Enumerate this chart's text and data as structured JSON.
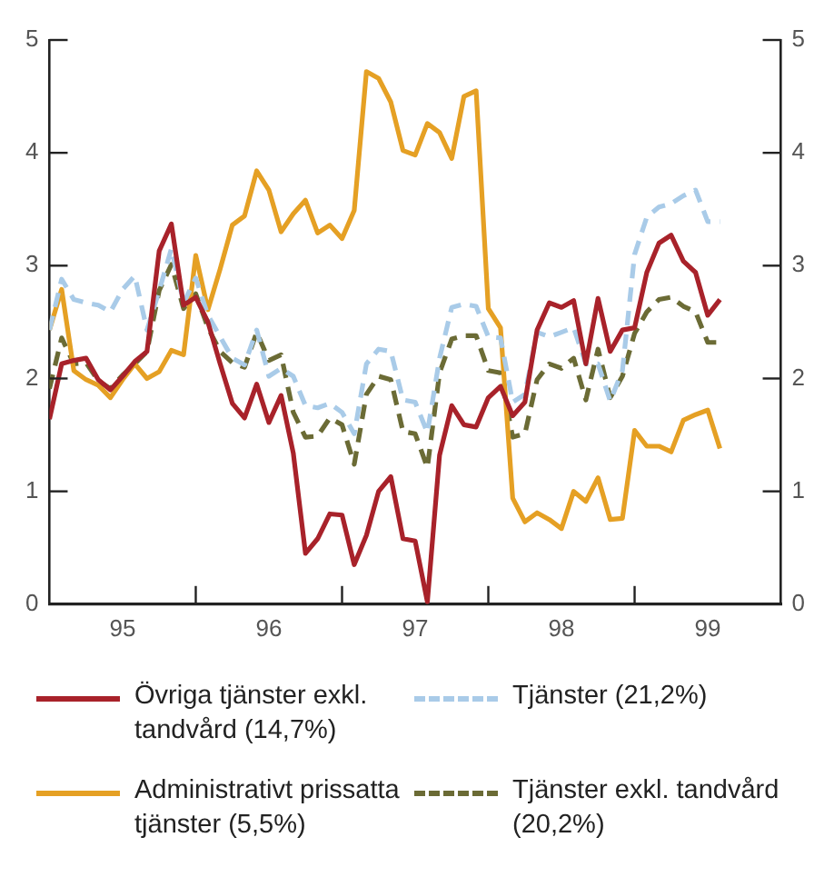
{
  "chart_data": {
    "type": "line",
    "x": [
      "1995-01",
      "1995-02",
      "1995-03",
      "1995-04",
      "1995-05",
      "1995-06",
      "1995-07",
      "1995-08",
      "1995-09",
      "1995-10",
      "1995-11",
      "1995-12",
      "1996-01",
      "1996-02",
      "1996-03",
      "1996-04",
      "1996-05",
      "1996-06",
      "1996-07",
      "1996-08",
      "1996-09",
      "1996-10",
      "1996-11",
      "1996-12",
      "1997-01",
      "1997-02",
      "1997-03",
      "1997-04",
      "1997-05",
      "1997-06",
      "1997-07",
      "1997-08",
      "1997-09",
      "1997-10",
      "1997-11",
      "1997-12",
      "1998-01",
      "1998-02",
      "1998-03",
      "1998-04",
      "1998-05",
      "1998-06",
      "1998-07",
      "1998-08",
      "1998-09",
      "1998-10",
      "1998-11",
      "1998-12",
      "1999-01",
      "1999-02",
      "1999-03",
      "1999-04",
      "1999-05",
      "1999-06",
      "1999-07",
      "1999-08"
    ],
    "series": [
      {
        "name": "Övriga tjänster exkl. tandvård (14,7%)",
        "color": "#a8222a",
        "line_style": "solid",
        "values": [
          1.64,
          2.13,
          2.16,
          2.18,
          1.99,
          1.9,
          2.02,
          2.15,
          2.24,
          3.13,
          3.37,
          2.65,
          2.72,
          2.5,
          2.13,
          1.78,
          1.65,
          1.95,
          1.61,
          1.85,
          1.34,
          0.45,
          0.58,
          0.8,
          0.79,
          0.35,
          0.61,
          1.0,
          1.13,
          0.58,
          0.56,
          0.02,
          1.32,
          1.76,
          1.59,
          1.57,
          1.83,
          1.93,
          1.67,
          1.79,
          2.43,
          2.67,
          2.63,
          2.69,
          2.13,
          2.71,
          2.24,
          2.43,
          2.45,
          2.94,
          3.2,
          3.27,
          3.04,
          2.94,
          2.56,
          2.7
        ]
      },
      {
        "name": "Tjänster (21,2%)",
        "color": "#a9cbe8",
        "line_style": "dashed",
        "values": [
          2.43,
          2.88,
          2.7,
          2.67,
          2.65,
          2.59,
          2.79,
          2.91,
          2.43,
          2.78,
          3.15,
          2.67,
          2.89,
          2.56,
          2.37,
          2.18,
          2.12,
          2.43,
          2.02,
          2.09,
          2.02,
          1.76,
          1.74,
          1.78,
          1.7,
          1.51,
          2.13,
          2.26,
          2.24,
          1.81,
          1.79,
          1.52,
          2.18,
          2.63,
          2.66,
          2.64,
          2.37,
          2.36,
          1.79,
          1.86,
          2.41,
          2.37,
          2.41,
          2.45,
          2.13,
          2.13,
          1.8,
          2.07,
          3.1,
          3.43,
          3.52,
          3.55,
          3.62,
          3.67,
          3.39,
          3.39
        ]
      },
      {
        "name": "Administrativt prissatta tjänster (5,5%)",
        "color": "#e5a024",
        "line_style": "solid",
        "values": [
          2.43,
          2.79,
          2.07,
          1.99,
          1.94,
          1.83,
          1.99,
          2.13,
          2.0,
          2.06,
          2.25,
          2.21,
          3.09,
          2.61,
          2.97,
          3.36,
          3.44,
          3.84,
          3.67,
          3.3,
          3.46,
          3.58,
          3.29,
          3.36,
          3.24,
          3.49,
          4.72,
          4.66,
          4.45,
          4.02,
          3.98,
          4.26,
          4.18,
          3.95,
          4.5,
          4.55,
          2.62,
          2.45,
          0.94,
          0.73,
          0.81,
          0.75,
          0.67,
          1.0,
          0.91,
          1.12,
          0.75,
          0.76,
          1.54,
          1.4,
          1.4,
          1.35,
          1.63,
          1.68,
          1.72,
          1.38
        ]
      },
      {
        "name": "Tjänster exkl. tandvård (20,2%)",
        "color": "#6b6b35",
        "line_style": "dashed",
        "values": [
          1.91,
          2.36,
          2.13,
          2.14,
          1.98,
          1.91,
          2.03,
          2.13,
          2.24,
          2.78,
          3.01,
          2.62,
          2.75,
          2.45,
          2.24,
          2.14,
          2.1,
          2.41,
          2.16,
          2.21,
          1.7,
          1.48,
          1.49,
          1.65,
          1.59,
          1.24,
          1.86,
          2.02,
          1.99,
          1.53,
          1.51,
          1.21,
          2.05,
          2.35,
          2.38,
          2.38,
          2.07,
          2.05,
          1.48,
          1.51,
          1.99,
          2.13,
          2.09,
          2.18,
          1.81,
          2.26,
          1.83,
          2.02,
          2.4,
          2.59,
          2.7,
          2.72,
          2.64,
          2.59,
          2.32,
          2.32
        ]
      }
    ],
    "xlim": [
      "1995-01",
      "2000-01"
    ],
    "xticks": [
      {
        "value": "1995-07",
        "label": "95"
      },
      {
        "value": "1996-01",
        "label": null
      },
      {
        "value": "1996-07",
        "label": "96"
      },
      {
        "value": "1997-01",
        "label": null
      },
      {
        "value": "1997-07",
        "label": "97"
      },
      {
        "value": "1998-01",
        "label": null
      },
      {
        "value": "1998-07",
        "label": "98"
      },
      {
        "value": "1999-01",
        "label": null
      },
      {
        "value": "1999-07",
        "label": "99"
      }
    ],
    "ylim": [
      0,
      5
    ],
    "yticks": [
      0,
      1,
      2,
      3,
      4,
      5
    ],
    "y2lim": [
      0,
      5
    ],
    "y2ticks": [
      0,
      1,
      2,
      3,
      4,
      5
    ],
    "grid": false,
    "legend": "bottom",
    "marker": "none"
  }
}
